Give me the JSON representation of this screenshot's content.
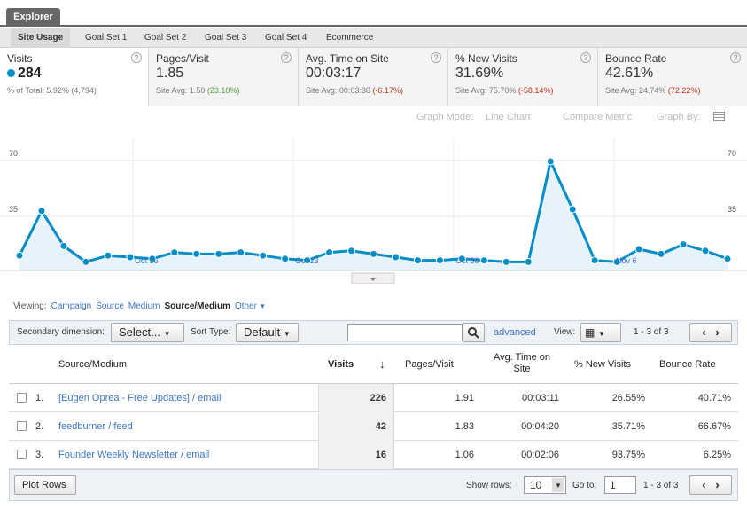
{
  "explorer_tab": "Explorer",
  "subtabs": [
    "Site Usage",
    "Goal Set 1",
    "Goal Set 2",
    "Goal Set 3",
    "Goal Set 4",
    "Ecommerce"
  ],
  "metrics": [
    {
      "label": "Visits",
      "value": "284",
      "sub_prefix": "% of Total:",
      "sub_value": "5.92% (4,794)"
    },
    {
      "label": "Pages/Visit",
      "value": "1.85",
      "sub_prefix": "Site Avg:",
      "sub_value": "1.50",
      "sub_delta": "(23.10%)"
    },
    {
      "label": "Avg. Time on Site",
      "value": "00:03:17",
      "sub_prefix": "Site Avg:",
      "sub_value": "00:03:30",
      "sub_delta": "(-6.17%)"
    },
    {
      "label": "% New Visits",
      "value": "31.69%",
      "sub_prefix": "Site Avg:",
      "sub_value": "75.70%",
      "sub_delta": "(-58.14%)"
    },
    {
      "label": "Bounce Rate",
      "value": "42.61%",
      "sub_prefix": "Site Avg:",
      "sub_value": "24.74%",
      "sub_delta": "(72.22%)"
    }
  ],
  "graph_controls": {
    "graph_mode_label": "Graph Mode:",
    "graph_mode_value": "Line Chart",
    "compare": "Compare Metric",
    "graph_by": "Graph By:"
  },
  "chart_data": {
    "type": "area",
    "y_ticks": [
      "70",
      "35"
    ],
    "x_labels": [
      "Oct 16",
      "Oct 23",
      "Oct 30",
      "Nov 6"
    ],
    "values": [
      6,
      34,
      12,
      2,
      6,
      5,
      4,
      8,
      7,
      7,
      8,
      6,
      4,
      3,
      8,
      9,
      7,
      5,
      3,
      3,
      4,
      3,
      2,
      2,
      65,
      35,
      3,
      2,
      10,
      7,
      13,
      9,
      4
    ],
    "ylim": [
      0,
      70
    ],
    "line_color": "#058dc7",
    "fill_color": "#e6f3fa"
  },
  "viewing": {
    "label": "Viewing:",
    "options": [
      "Campaign",
      "Source",
      "Medium",
      "Source/Medium",
      "Other"
    ]
  },
  "toolbar": {
    "secondary_label": "Secondary dimension:",
    "select_value": "Select...",
    "sort_label": "Sort Type:",
    "sort_value": "Default",
    "advanced": "advanced",
    "view_label": "View:",
    "range": "1 - 3 of 3"
  },
  "table": {
    "headers": [
      "Source/Medium",
      "Visits",
      "Pages/Visit",
      "Avg. Time on Site",
      "% New Visits",
      "Bounce Rate"
    ],
    "rows": [
      {
        "num": "1.",
        "source": "[Eugen Oprea - Free Updates] / email",
        "visits": "226",
        "pages": "1.91",
        "time": "00:03:11",
        "new": "26.55%",
        "bounce": "40.71%"
      },
      {
        "num": "2.",
        "source": "feedburner / feed",
        "visits": "42",
        "pages": "1.83",
        "time": "00:04:20",
        "new": "35.71%",
        "bounce": "66.67%"
      },
      {
        "num": "3.",
        "source": "Founder Weekly Newsletter / email",
        "visits": "16",
        "pages": "1.06",
        "time": "00:02:06",
        "new": "93.75%",
        "bounce": "6.25%"
      }
    ]
  },
  "footer": {
    "plot_rows": "Plot Rows",
    "show_rows_label": "Show rows:",
    "show_rows_value": "10",
    "goto_label": "Go to:",
    "goto_value": "1",
    "range": "1 - 3 of 3"
  }
}
